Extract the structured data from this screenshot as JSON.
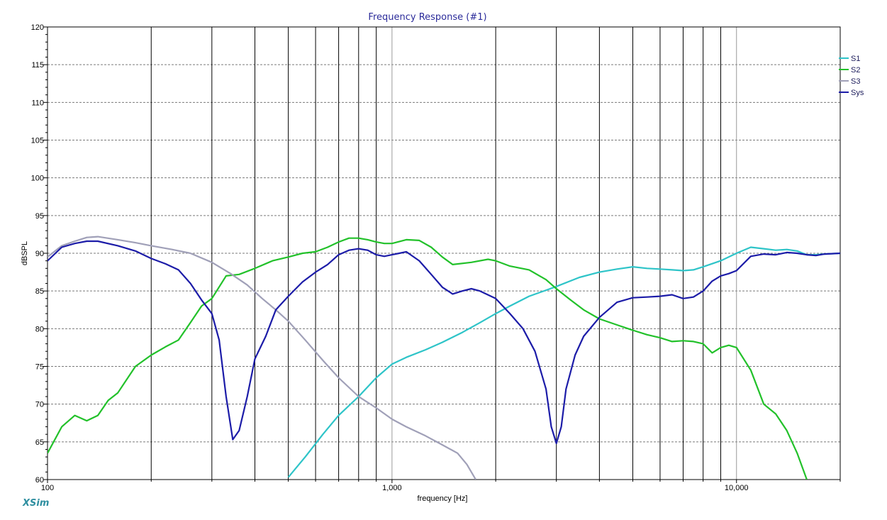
{
  "brand": "XSim",
  "chart_data": {
    "type": "line",
    "title": "Frequency Response (#1)",
    "xlabel": "frequency [Hz]",
    "ylabel": "dBSPL",
    "xscale": "log",
    "xlim": [
      100,
      20000
    ],
    "ylim": [
      60,
      120
    ],
    "yticks": [
      60,
      65,
      70,
      75,
      80,
      85,
      90,
      95,
      100,
      105,
      110,
      115,
      120
    ],
    "xtick_labels": [
      {
        "value": 100,
        "label": "100"
      },
      {
        "value": 1000,
        "label": "1,000"
      },
      {
        "value": 10000,
        "label": "10,000"
      }
    ],
    "grid": true,
    "legend_position": "right",
    "colors": {
      "S1": "#2ec4c8",
      "S2": "#22c12a",
      "S3": "#a0a0b8",
      "Sys": "#1c1ca8"
    },
    "series": [
      {
        "name": "S1",
        "x": [
          500,
          560,
          630,
          700,
          800,
          900,
          1000,
          1100,
          1250,
          1400,
          1600,
          1800,
          2000,
          2200,
          2500,
          2800,
          3000,
          3500,
          4000,
          4500,
          5000,
          5500,
          6000,
          6500,
          7000,
          7500,
          8000,
          9000,
          10000,
          11000,
          12000,
          13000,
          14000,
          15000,
          16000,
          17000,
          18000,
          20000
        ],
        "y": [
          60.3,
          63.0,
          66.0,
          68.5,
          71.0,
          73.5,
          75.3,
          76.2,
          77.2,
          78.2,
          79.5,
          80.8,
          82.0,
          83.0,
          84.3,
          85.1,
          85.6,
          86.8,
          87.5,
          87.9,
          88.2,
          88.0,
          87.9,
          87.8,
          87.7,
          87.8,
          88.2,
          89.0,
          90.0,
          90.8,
          90.6,
          90.4,
          90.5,
          90.3,
          89.8,
          89.8,
          89.9,
          90.0
        ]
      },
      {
        "name": "S2",
        "x": [
          100,
          110,
          120,
          130,
          140,
          150,
          160,
          180,
          200,
          220,
          240,
          260,
          280,
          300,
          330,
          360,
          400,
          450,
          500,
          550,
          600,
          650,
          700,
          750,
          800,
          850,
          900,
          950,
          1000,
          1100,
          1200,
          1300,
          1400,
          1500,
          1700,
          1900,
          2000,
          2200,
          2500,
          2800,
          3000,
          3300,
          3600,
          4000,
          4500,
          5000,
          5500,
          6000,
          6500,
          7000,
          7500,
          8000,
          8500,
          9000,
          9500,
          10000,
          11000,
          12000,
          13000,
          14000,
          15000,
          16000
        ],
        "y": [
          63.5,
          67.0,
          68.5,
          67.8,
          68.5,
          70.5,
          71.5,
          75.0,
          76.5,
          77.6,
          78.5,
          80.8,
          83.0,
          84.0,
          87.0,
          87.2,
          88.0,
          89.0,
          89.5,
          90.0,
          90.2,
          90.8,
          91.5,
          92.0,
          92.0,
          91.8,
          91.5,
          91.3,
          91.3,
          91.8,
          91.7,
          90.8,
          89.5,
          88.5,
          88.8,
          89.2,
          89.0,
          88.3,
          87.8,
          86.5,
          85.3,
          83.8,
          82.5,
          81.3,
          80.5,
          79.8,
          79.2,
          78.8,
          78.3,
          78.4,
          78.3,
          78.0,
          76.8,
          77.5,
          77.8,
          77.5,
          74.5,
          70.0,
          68.7,
          66.5,
          63.5,
          60.0
        ]
      },
      {
        "name": "S3",
        "x": [
          100,
          110,
          120,
          130,
          140,
          160,
          180,
          200,
          230,
          260,
          300,
          340,
          380,
          420,
          460,
          500,
          560,
          630,
          700,
          800,
          900,
          1000,
          1100,
          1250,
          1400,
          1550,
          1650,
          1750
        ],
        "y": [
          89.5,
          91.0,
          91.6,
          92.1,
          92.2,
          91.8,
          91.4,
          91.0,
          90.5,
          90.0,
          88.8,
          87.3,
          85.8,
          84.0,
          82.5,
          81.0,
          78.5,
          75.8,
          73.5,
          71.0,
          69.5,
          68.0,
          67.0,
          65.8,
          64.6,
          63.5,
          62.0,
          60.0
        ]
      },
      {
        "name": "Sys",
        "x": [
          100,
          110,
          120,
          130,
          140,
          160,
          180,
          200,
          220,
          240,
          260,
          280,
          300,
          315,
          330,
          345,
          360,
          380,
          400,
          430,
          460,
          500,
          550,
          600,
          650,
          700,
          750,
          800,
          850,
          900,
          950,
          1000,
          1050,
          1100,
          1200,
          1300,
          1400,
          1500,
          1600,
          1700,
          1800,
          2000,
          2200,
          2400,
          2600,
          2800,
          2900,
          3000,
          3100,
          3200,
          3400,
          3600,
          4000,
          4500,
          5000,
          5500,
          6000,
          6500,
          7000,
          7500,
          8000,
          8500,
          9000,
          9500,
          10000,
          11000,
          12000,
          13000,
          14000,
          15000,
          16000,
          17000,
          18000,
          20000
        ],
        "y": [
          89.0,
          90.8,
          91.3,
          91.6,
          91.6,
          91.0,
          90.3,
          89.3,
          88.6,
          87.8,
          86.0,
          83.8,
          82.0,
          78.5,
          71.0,
          65.3,
          66.5,
          71.0,
          76.0,
          79.0,
          82.5,
          84.3,
          86.2,
          87.5,
          88.5,
          89.8,
          90.4,
          90.6,
          90.4,
          89.8,
          89.6,
          89.8,
          90.0,
          90.2,
          89.0,
          87.2,
          85.5,
          84.6,
          85.0,
          85.3,
          85.0,
          84.0,
          82.0,
          80.0,
          77.0,
          72.0,
          67.0,
          64.8,
          67.0,
          72.0,
          76.5,
          79.0,
          81.5,
          83.5,
          84.1,
          84.2,
          84.3,
          84.5,
          84.0,
          84.2,
          85.0,
          86.3,
          87.0,
          87.3,
          87.7,
          89.6,
          89.9,
          89.8,
          90.1,
          90.0,
          89.8,
          89.7,
          89.9,
          90.0
        ]
      }
    ]
  }
}
